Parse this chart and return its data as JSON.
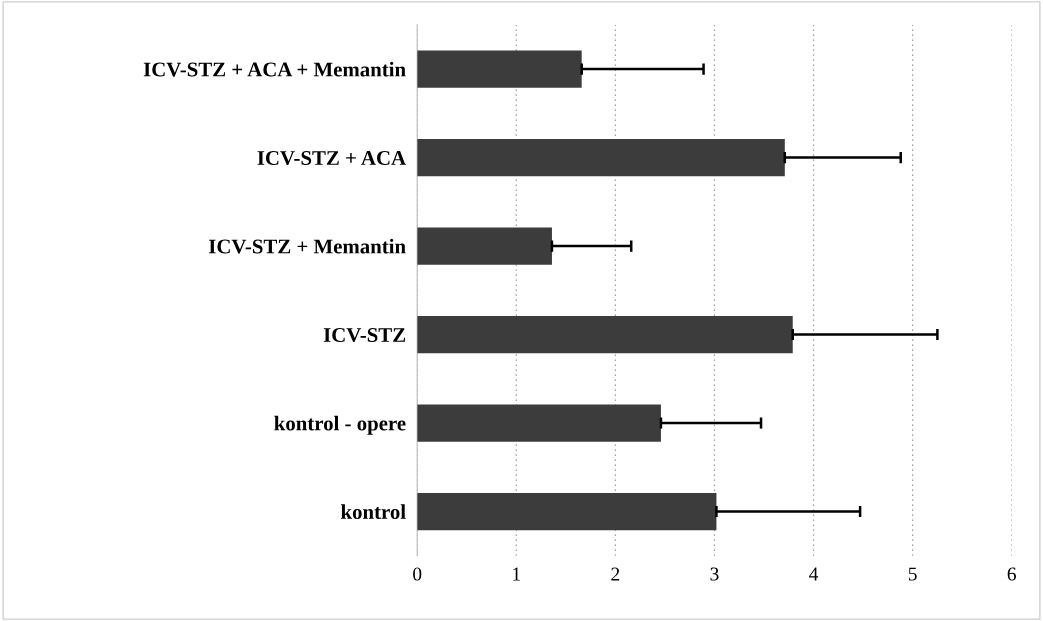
{
  "chart_data": {
    "type": "bar",
    "orientation": "horizontal",
    "categories": [
      "ICV-STZ + ACA + Memantin",
      "ICV-STZ + ACA",
      "ICV-STZ + Memantin",
      "ICV-STZ",
      "kontrol - opere",
      "kontrol"
    ],
    "values": [
      1.66,
      3.71,
      1.36,
      3.79,
      2.46,
      3.02
    ],
    "errors": [
      [
        1.66,
        2.89
      ],
      [
        3.71,
        4.88
      ],
      [
        1.36,
        2.16
      ],
      [
        3.79,
        5.25
      ],
      [
        2.46,
        3.47
      ],
      [
        3.02,
        4.47
      ]
    ],
    "color": "#3c3c3c",
    "xlim": [
      0,
      6
    ],
    "xticks": [
      0,
      1,
      2,
      3,
      4,
      5,
      6
    ],
    "grid": "x",
    "legend": false
  }
}
